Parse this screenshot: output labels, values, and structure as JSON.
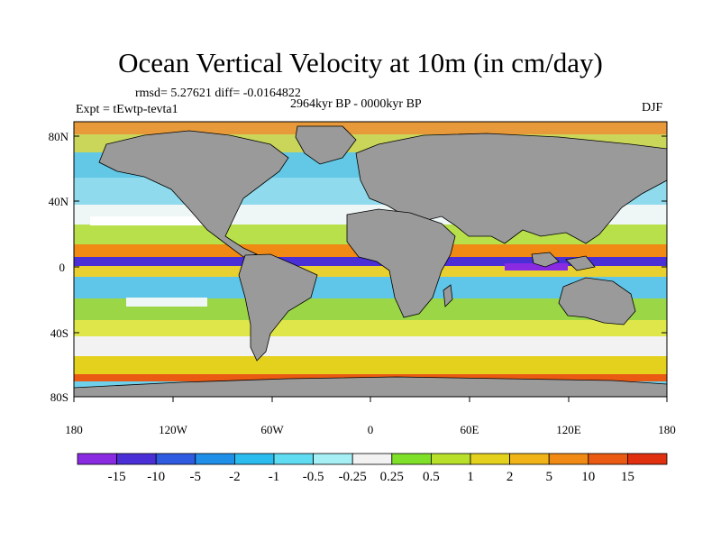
{
  "title": "Ocean Vertical Velocity at 10m (in cm/day)",
  "stats": "rmsd= 5.27621  diff= -0.0164822",
  "period": "2964kyr BP - 0000kyr BP",
  "experiment": "Expt = tEwtp-tevta1",
  "season": "DJF",
  "lat_labels": [
    "80N",
    "40N",
    "0",
    "40S",
    "80S"
  ],
  "lon_labels": [
    "180",
    "120W",
    "60W",
    "0",
    "60E",
    "120E",
    "180"
  ],
  "colorbar": {
    "labels": [
      "-15",
      "-10",
      "-5",
      "-2",
      "-1",
      "-0.5",
      "-0.25",
      "0.25",
      "0.5",
      "1",
      "2",
      "5",
      "10",
      "15"
    ],
    "colors": [
      "#8a2be2",
      "#4b2fd6",
      "#2f5be0",
      "#1f8fe8",
      "#2bbcef",
      "#5fdcf2",
      "#a6f0f5",
      "#f2f2f2",
      "#7fe02a",
      "#b8e02a",
      "#e3d11d",
      "#f0b418",
      "#f08a14",
      "#ea5a12",
      "#e0300f"
    ]
  },
  "colors": {
    "land": "#9a9a9a",
    "coast": "#000000"
  }
}
